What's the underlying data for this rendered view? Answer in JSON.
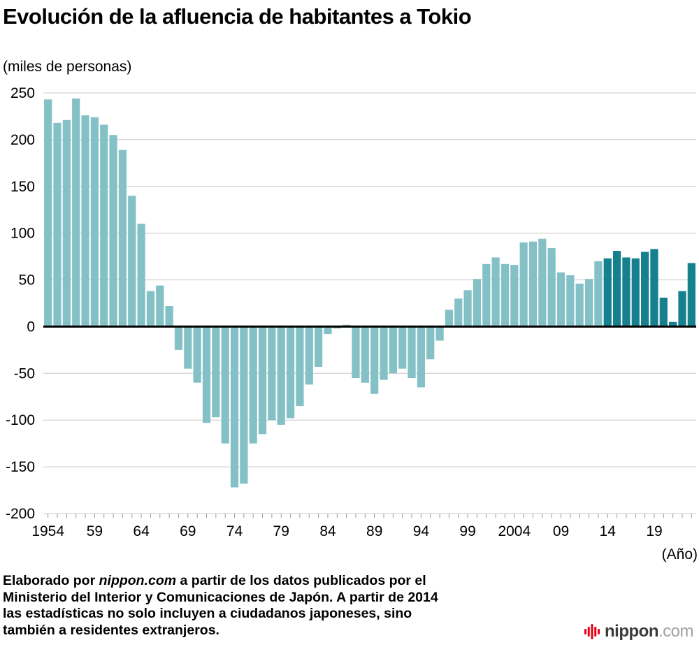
{
  "page": {
    "title": "Evolución de la afluencia de habitantes a Tokio",
    "unit_label": "(miles de personas)",
    "x_axis_caption": "(Año)"
  },
  "footer": {
    "parts": [
      {
        "t": "Elaborado por "
      },
      {
        "t": "nippon.com",
        "i": true
      },
      {
        "t": " a partir de los datos publicados por el"
      },
      {
        "br": true
      },
      {
        "t": "Ministerio del Interior y Comunicaciones de Japón. A partir de 2014"
      },
      {
        "br": true
      },
      {
        "t": "las estadísticas no solo incluyen a ciudadanos japoneses, sino"
      },
      {
        "br": true
      },
      {
        "t": "también a residentes extranjeros."
      }
    ]
  },
  "logo": {
    "name": "nippon",
    "tld": ".com",
    "mark_color": "#e60012"
  },
  "chart_data": {
    "type": "bar",
    "title": "Evolución de la afluencia de habitantes a Tokio",
    "ylabel": "(miles de personas)",
    "xlabel": "(Año)",
    "ylim": [
      -200,
      250
    ],
    "grid": true,
    "y_ticks": [
      250,
      200,
      150,
      100,
      50,
      0,
      -50,
      -100,
      -150,
      -200
    ],
    "x_tick_labels": [
      "1954",
      "59",
      "64",
      "69",
      "74",
      "79",
      "84",
      "89",
      "94",
      "99",
      "2004",
      "09",
      "14",
      "19"
    ],
    "x_tick_years": [
      1954,
      1959,
      1964,
      1969,
      1974,
      1979,
      1984,
      1989,
      1994,
      1999,
      2004,
      2009,
      2014,
      2019
    ],
    "year_start": 1954,
    "year_end": 2023,
    "values": [
      243,
      218,
      221,
      244,
      226,
      224,
      216,
      205,
      189,
      140,
      110,
      38,
      44,
      22,
      -25,
      -45,
      -60,
      -103,
      -97,
      -125,
      -172,
      -168,
      -125,
      -115,
      -100,
      -105,
      -98,
      -85,
      -62,
      -43,
      -8,
      -2,
      2,
      -55,
      -60,
      -72,
      -57,
      -50,
      -45,
      -55,
      -65,
      -35,
      -15,
      18,
      30,
      39,
      51,
      67,
      74,
      67,
      66,
      90,
      91,
      94,
      84,
      58,
      55,
      46,
      51,
      70,
      73,
      81,
      74,
      73,
      80,
      83,
      31,
      5,
      38,
      68
    ],
    "dark_from_year": 2014,
    "colors": {
      "bar_light": "#84c1c6",
      "bar_dark": "#16808e",
      "grid": "#c8c8c8",
      "zero_line": "#000000",
      "axis_tick": "#999999"
    }
  }
}
